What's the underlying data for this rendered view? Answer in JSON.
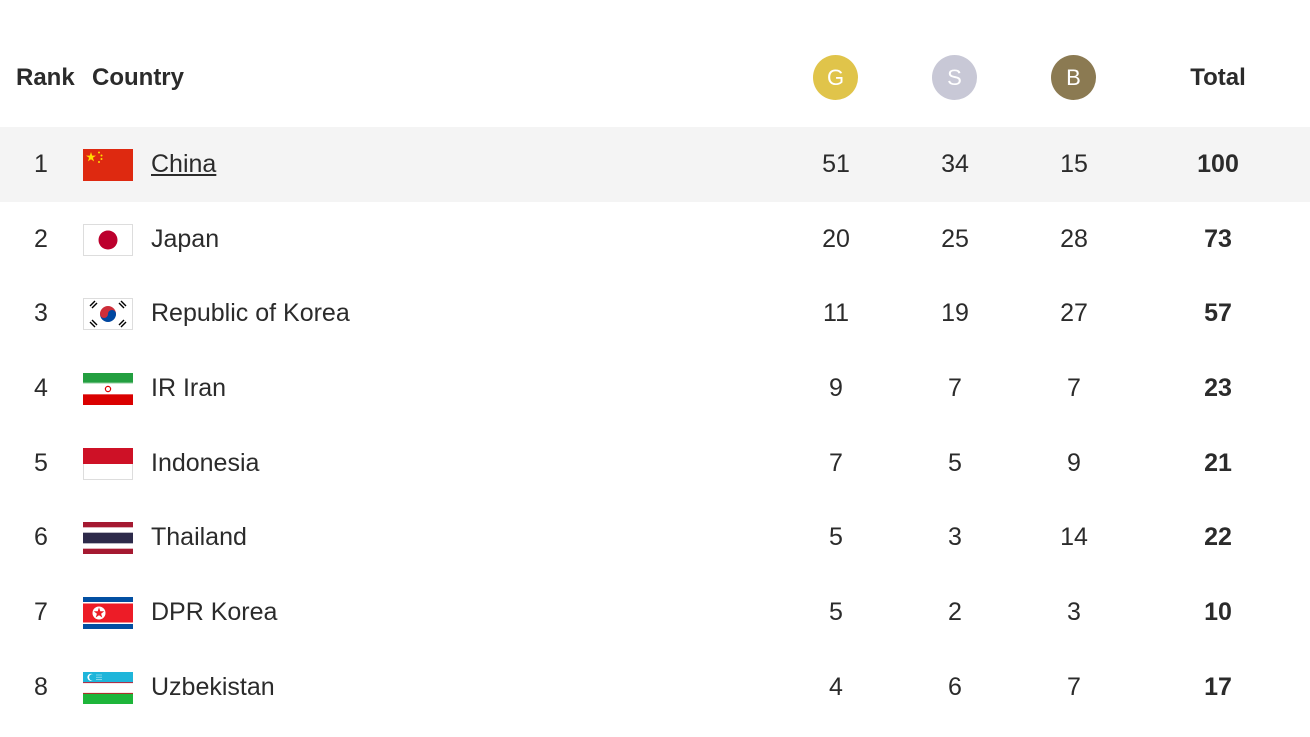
{
  "header": {
    "rank": "Rank",
    "country": "Country",
    "gold": "G",
    "silver": "S",
    "bronze": "B",
    "total": "Total"
  },
  "colors": {
    "gold": "#e0c44a",
    "silver": "#c8c8d6",
    "bronze": "#8b7a52",
    "highlight_row": "#f4f4f4"
  },
  "rows": [
    {
      "rank": "1",
      "country": "China",
      "flag": "china-flag-icon",
      "gold": "51",
      "silver": "34",
      "bronze": "15",
      "total": "100"
    },
    {
      "rank": "2",
      "country": "Japan",
      "flag": "japan-flag-icon",
      "gold": "20",
      "silver": "25",
      "bronze": "28",
      "total": "73"
    },
    {
      "rank": "3",
      "country": "Republic of Korea",
      "flag": "korea-flag-icon",
      "gold": "11",
      "silver": "19",
      "bronze": "27",
      "total": "57"
    },
    {
      "rank": "4",
      "country": "IR Iran",
      "flag": "iran-flag-icon",
      "gold": "9",
      "silver": "7",
      "bronze": "7",
      "total": "23"
    },
    {
      "rank": "5",
      "country": "Indonesia",
      "flag": "indonesia-flag-icon",
      "gold": "7",
      "silver": "5",
      "bronze": "9",
      "total": "21"
    },
    {
      "rank": "6",
      "country": "Thailand",
      "flag": "thailand-flag-icon",
      "gold": "5",
      "silver": "3",
      "bronze": "14",
      "total": "22"
    },
    {
      "rank": "7",
      "country": "DPR Korea",
      "flag": "dpr-korea-flag-icon",
      "gold": "5",
      "silver": "2",
      "bronze": "3",
      "total": "10"
    },
    {
      "rank": "8",
      "country": "Uzbekistan",
      "flag": "uzbekistan-flag-icon",
      "gold": "4",
      "silver": "6",
      "bronze": "7",
      "total": "17"
    }
  ]
}
